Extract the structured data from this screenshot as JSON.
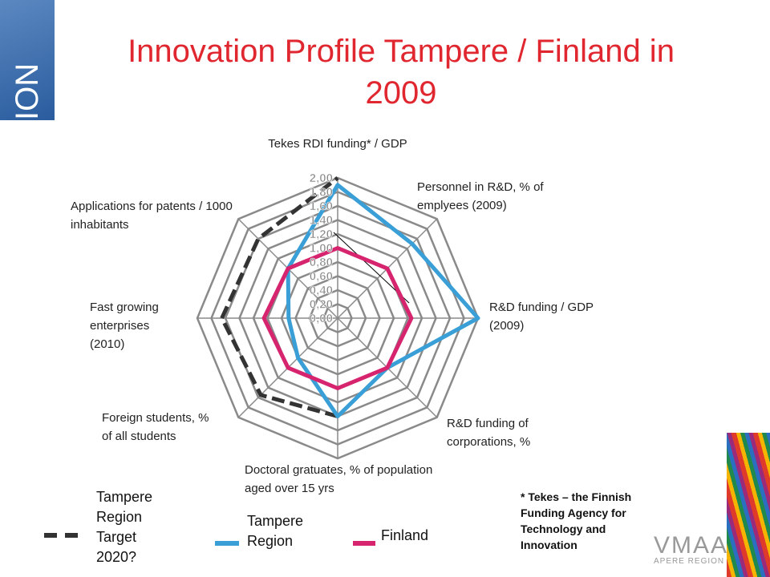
{
  "chart_data": {
    "type": "radar",
    "title": "Innovation Profile Tampere / Finland in 2009",
    "categories": [
      "Tekes RDI funding* / GDP",
      "Personnel in R&D, % of emplyees (2009)",
      "R&D funding / GDP (2009)",
      "R&D funding of corporations, %",
      "Doctoral gratuates, % of population aged over 15 yrs",
      "Foreign students, % of all students",
      "Fast growing enterprises (2010)",
      "Applications for patents / 1000 inhabitants"
    ],
    "series": [
      {
        "name": "Tampere Region Target 2020?",
        "color": "#333333",
        "line_style": "dashed",
        "values": [
          2.0,
          null,
          null,
          null,
          1.4,
          1.55,
          1.65,
          1.6
        ]
      },
      {
        "name": "Tampere Region",
        "color": "#3a9fd6",
        "line_style": "solid",
        "values": [
          1.9,
          1.5,
          2.0,
          1.0,
          1.4,
          0.8,
          0.7,
          1.0
        ]
      },
      {
        "name": "Finland",
        "color": "#d6246e",
        "line_style": "solid",
        "values": [
          1.0,
          1.0,
          1.05,
          1.0,
          1.0,
          1.0,
          1.05,
          1.0
        ]
      }
    ],
    "rlim": [
      0,
      2
    ],
    "rticks": [
      {
        "value": 0,
        "label": "0,00"
      },
      {
        "value": 0.2,
        "label": "0,20"
      },
      {
        "value": 0.4,
        "label": "0,40"
      },
      {
        "value": 0.6,
        "label": "0,60"
      },
      {
        "value": 0.8,
        "label": "0,80"
      },
      {
        "value": 1.0,
        "label": "1,00"
      },
      {
        "value": 1.2,
        "label": "1,20"
      },
      {
        "value": 1.4,
        "label": "1,40"
      },
      {
        "value": 1.6,
        "label": "1,60"
      },
      {
        "value": 1.8,
        "label": "1,80"
      },
      {
        "value": 2.0,
        "label": "2,00"
      }
    ],
    "grid": true,
    "footnote": "* Tekes – the Finnish Funding Agency for Technology and Innovation"
  },
  "branding": {
    "left_logo": "ION",
    "right_logo": "VMAA",
    "right_logo_sub": "APERE REGION"
  }
}
